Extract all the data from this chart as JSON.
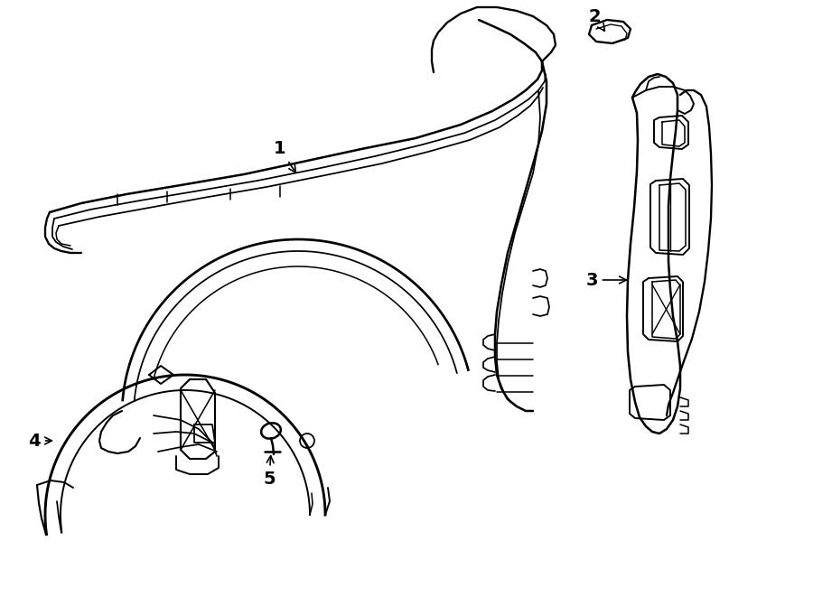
{
  "background_color": "#ffffff",
  "line_color": "#000000",
  "line_width": 1.4,
  "fig_width": 9.0,
  "fig_height": 6.61,
  "arrow_color": "#000000"
}
